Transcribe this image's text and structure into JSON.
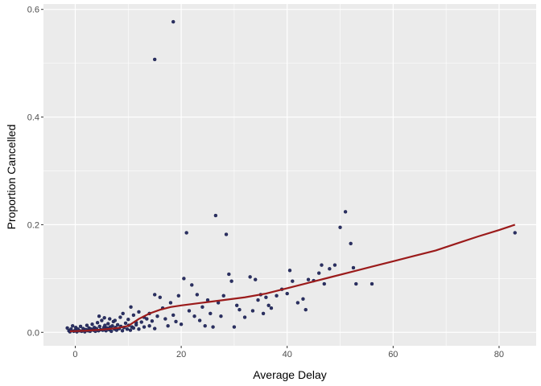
{
  "chart_data": {
    "type": "scatter",
    "xlabel": "Average Delay",
    "ylabel": "Proportion Cancelled",
    "xlim": [
      -6,
      87
    ],
    "ylim": [
      -0.025,
      0.61
    ],
    "x_ticks": [
      0,
      20,
      40,
      60,
      80
    ],
    "x_tick_labels": [
      "0",
      "20",
      "40",
      "60",
      "80"
    ],
    "y_ticks": [
      0.0,
      0.2,
      0.4,
      0.6
    ],
    "y_tick_labels": [
      "0.0",
      "0.2",
      "0.4",
      "0.6"
    ],
    "grid": true,
    "background": "#ebebeb",
    "point_color": "#2c3063",
    "line_color": "#9b1b1b",
    "points": [
      [
        -1.5,
        0.008
      ],
      [
        -1.2,
        0.003
      ],
      [
        -1.0,
        0.001
      ],
      [
        -0.8,
        0.006
      ],
      [
        -0.5,
        0.012
      ],
      [
        -0.3,
        0.002
      ],
      [
        0.0,
        0.004
      ],
      [
        0.1,
        0.009
      ],
      [
        0.3,
        0.001
      ],
      [
        0.5,
        0.006
      ],
      [
        0.8,
        0.003
      ],
      [
        1.0,
        0.011
      ],
      [
        1.2,
        0.002
      ],
      [
        1.5,
        0.007
      ],
      [
        1.8,
        0.001
      ],
      [
        2.0,
        0.005
      ],
      [
        2.2,
        0.013
      ],
      [
        2.4,
        0.003
      ],
      [
        2.6,
        0.008
      ],
      [
        2.8,
        0.002
      ],
      [
        3.0,
        0.006
      ],
      [
        3.2,
        0.015
      ],
      [
        3.4,
        0.004
      ],
      [
        3.6,
        0.009
      ],
      [
        3.8,
        0.002
      ],
      [
        4.0,
        0.007
      ],
      [
        4.2,
        0.018
      ],
      [
        4.4,
        0.003
      ],
      [
        4.6,
        0.011
      ],
      [
        4.8,
        0.005
      ],
      [
        5.0,
        0.022
      ],
      [
        5.2,
        0.004
      ],
      [
        5.4,
        0.009
      ],
      [
        5.6,
        0.013
      ],
      [
        5.8,
        0.003
      ],
      [
        6.0,
        0.008
      ],
      [
        6.2,
        0.016
      ],
      [
        6.4,
        0.005
      ],
      [
        6.6,
        0.01
      ],
      [
        6.8,
        0.002
      ],
      [
        7.0,
        0.012
      ],
      [
        7.2,
        0.02
      ],
      [
        7.4,
        0.006
      ],
      [
        7.6,
        0.009
      ],
      [
        7.8,
        0.004
      ],
      [
        8.0,
        0.014
      ],
      [
        8.3,
        0.007
      ],
      [
        8.6,
        0.011
      ],
      [
        8.9,
        0.003
      ],
      [
        9.2,
        0.009
      ],
      [
        9.5,
        0.017
      ],
      [
        9.8,
        0.006
      ],
      [
        10.1,
        0.013
      ],
      [
        10.4,
        0.004
      ],
      [
        10.7,
        0.01
      ],
      [
        4.5,
        0.03
      ],
      [
        5.5,
        0.027
      ],
      [
        6.5,
        0.025
      ],
      [
        7.5,
        0.022
      ],
      [
        8.5,
        0.028
      ],
      [
        9.0,
        0.035
      ],
      [
        10.0,
        0.024
      ],
      [
        10.5,
        0.047
      ],
      [
        11.0,
        0.032
      ],
      [
        11.5,
        0.018
      ],
      [
        11.0,
        0.008
      ],
      [
        11.5,
        0.014
      ],
      [
        12.0,
        0.006
      ],
      [
        12.5,
        0.019
      ],
      [
        13.0,
        0.01
      ],
      [
        13.5,
        0.025
      ],
      [
        14.0,
        0.012
      ],
      [
        14.5,
        0.021
      ],
      [
        15.0,
        0.007
      ],
      [
        15.5,
        0.03
      ],
      [
        12.0,
        0.038
      ],
      [
        13.0,
        0.028
      ],
      [
        14.0,
        0.035
      ],
      [
        15.0,
        0.07
      ],
      [
        16.0,
        0.065
      ],
      [
        16.5,
        0.045
      ],
      [
        17.0,
        0.025
      ],
      [
        17.5,
        0.012
      ],
      [
        18.0,
        0.055
      ],
      [
        18.5,
        0.032
      ],
      [
        19.0,
        0.02
      ],
      [
        19.5,
        0.068
      ],
      [
        20.0,
        0.015
      ],
      [
        20.5,
        0.1
      ],
      [
        21.0,
        0.185
      ],
      [
        21.5,
        0.04
      ],
      [
        22.0,
        0.088
      ],
      [
        22.5,
        0.03
      ],
      [
        23.0,
        0.07
      ],
      [
        23.5,
        0.022
      ],
      [
        24.0,
        0.047
      ],
      [
        24.5,
        0.012
      ],
      [
        25.0,
        0.06
      ],
      [
        25.5,
        0.035
      ],
      [
        26.0,
        0.01
      ],
      [
        26.5,
        0.217
      ],
      [
        27.0,
        0.055
      ],
      [
        27.5,
        0.03
      ],
      [
        28.0,
        0.068
      ],
      [
        28.5,
        0.182
      ],
      [
        29.0,
        0.108
      ],
      [
        29.5,
        0.095
      ],
      [
        30.0,
        0.01
      ],
      [
        30.5,
        0.05
      ],
      [
        31.0,
        0.042
      ],
      [
        32.0,
        0.028
      ],
      [
        33.0,
        0.103
      ],
      [
        33.5,
        0.04
      ],
      [
        34.0,
        0.098
      ],
      [
        34.5,
        0.06
      ],
      [
        35.0,
        0.07
      ],
      [
        35.5,
        0.035
      ],
      [
        36.0,
        0.065
      ],
      [
        36.5,
        0.05
      ],
      [
        37.0,
        0.045
      ],
      [
        38.0,
        0.068
      ],
      [
        39.0,
        0.08
      ],
      [
        40.0,
        0.072
      ],
      [
        40.5,
        0.115
      ],
      [
        41.0,
        0.095
      ],
      [
        42.0,
        0.055
      ],
      [
        43.0,
        0.062
      ],
      [
        43.5,
        0.042
      ],
      [
        44.0,
        0.098
      ],
      [
        45.0,
        0.096
      ],
      [
        46.0,
        0.11
      ],
      [
        46.5,
        0.125
      ],
      [
        47.0,
        0.09
      ],
      [
        48.0,
        0.118
      ],
      [
        49.0,
        0.125
      ],
      [
        50.0,
        0.195
      ],
      [
        51.0,
        0.224
      ],
      [
        52.0,
        0.165
      ],
      [
        52.5,
        0.12
      ],
      [
        53.0,
        0.09
      ],
      [
        56.0,
        0.09
      ],
      [
        83.0,
        0.185
      ],
      [
        15.0,
        0.507
      ],
      [
        18.5,
        0.577
      ]
    ],
    "smooth_line": [
      [
        -1,
        0.002
      ],
      [
        2,
        0.003
      ],
      [
        5,
        0.005
      ],
      [
        8,
        0.008
      ],
      [
        10,
        0.012
      ],
      [
        12,
        0.025
      ],
      [
        14,
        0.035
      ],
      [
        16,
        0.042
      ],
      [
        18,
        0.047
      ],
      [
        20,
        0.05
      ],
      [
        24,
        0.055
      ],
      [
        28,
        0.06
      ],
      [
        32,
        0.065
      ],
      [
        36,
        0.072
      ],
      [
        40,
        0.082
      ],
      [
        44,
        0.092
      ],
      [
        48,
        0.102
      ],
      [
        52,
        0.112
      ],
      [
        56,
        0.122
      ],
      [
        60,
        0.132
      ],
      [
        64,
        0.142
      ],
      [
        68,
        0.152
      ],
      [
        72,
        0.165
      ],
      [
        76,
        0.178
      ],
      [
        80,
        0.19
      ],
      [
        83,
        0.2
      ]
    ]
  }
}
